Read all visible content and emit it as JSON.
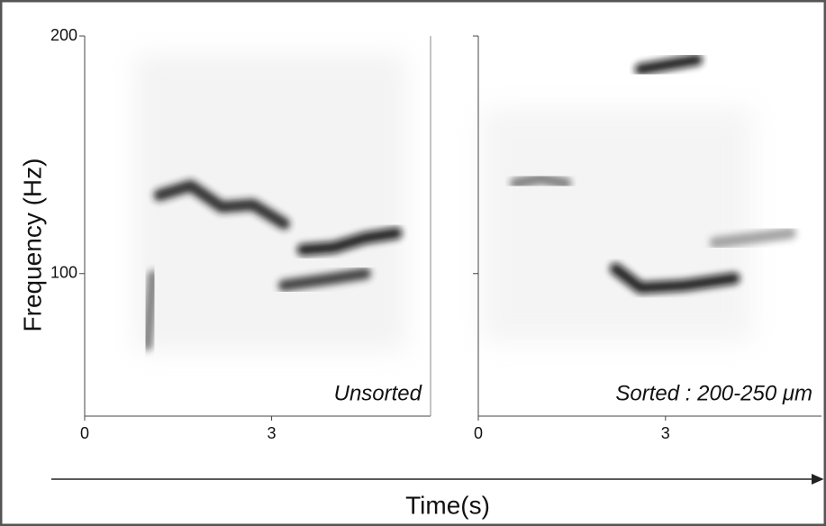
{
  "ylabel": "Frequency (Hz)",
  "xlabel": "Time(s)",
  "chart_data": [
    {
      "type": "spectrogram",
      "annotation": "Unsorted",
      "xlim": [
        0,
        5.55
      ],
      "xticks": [
        0,
        3
      ],
      "ylim": [
        40,
        200
      ],
      "yticks": [
        100,
        200
      ],
      "series": [
        {
          "color": "#1a1a1a",
          "x": [
            1.2,
            1.7,
            2.2,
            2.7,
            3.2
          ],
          "values": [
            133,
            137,
            128,
            129,
            121
          ]
        },
        {
          "color": "#0d0d0d",
          "x": [
            3.5,
            4.0,
            4.5,
            5.0
          ],
          "values": [
            110,
            111,
            115,
            117
          ]
        },
        {
          "color": "#333333",
          "x": [
            3.2,
            4.0,
            4.5
          ],
          "values": [
            95,
            98,
            100
          ]
        },
        {
          "color": "#777777",
          "x": [
            1.0,
            1.1
          ],
          "values": [
            70,
            99
          ]
        }
      ]
    },
    {
      "type": "spectrogram",
      "annotation": "Sorted :  200-250 μm",
      "xlim": [
        0,
        5.5
      ],
      "xticks": [
        0,
        3
      ],
      "ylim": [
        40,
        200
      ],
      "yticks": [
        100,
        200
      ],
      "series": [
        {
          "color": "#111111",
          "x": [
            2.6,
            3.5
          ],
          "values": [
            186,
            190
          ]
        },
        {
          "color": "#0d0d0d",
          "x": [
            2.2,
            2.6,
            3.3,
            4.1
          ],
          "values": [
            102,
            94,
            95,
            98
          ]
        },
        {
          "color": "#777777",
          "x": [
            0.6,
            1.0,
            1.4
          ],
          "values": [
            138,
            140,
            138
          ]
        },
        {
          "color": "#999999",
          "x": [
            3.8,
            5.0
          ],
          "values": [
            113,
            117
          ]
        }
      ]
    }
  ]
}
